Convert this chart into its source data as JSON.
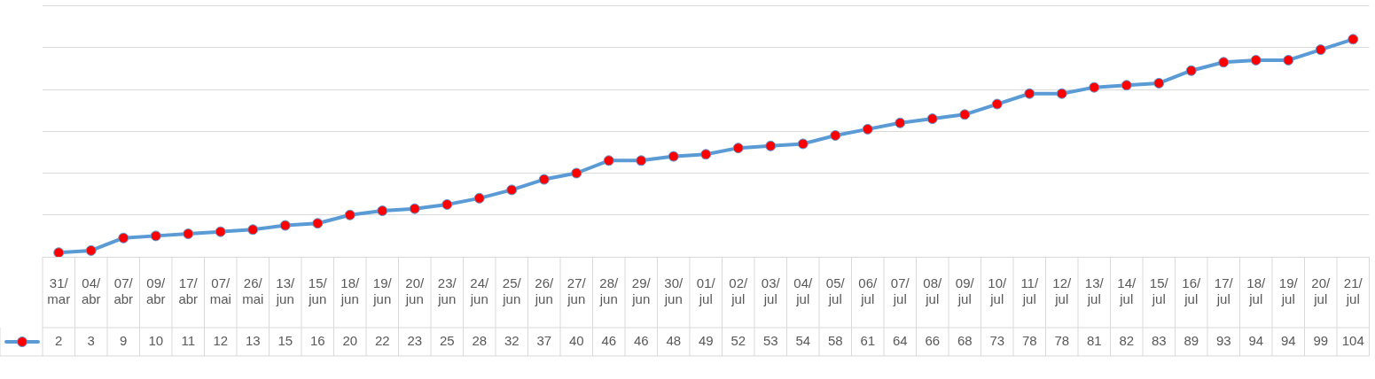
{
  "chart_data": {
    "type": "line",
    "categories": [
      "31/mar",
      "04/abr",
      "07/abr",
      "09/abr",
      "17/abr",
      "07/mai",
      "26/mai",
      "13/jun",
      "15/jun",
      "18/jun",
      "19/jun",
      "20/jun",
      "23/jun",
      "24/jun",
      "25/jun",
      "26/jun",
      "27/jun",
      "28/jun",
      "29/jun",
      "30/jun",
      "01/jul",
      "02/jul",
      "03/jul",
      "04/jul",
      "05/jul",
      "06/jul",
      "07/jul",
      "08/jul",
      "09/jul",
      "10/jul",
      "11/jul",
      "12/jul",
      "13/jul",
      "14/jul",
      "15/jul",
      "16/jul",
      "17/jul",
      "18/jul",
      "19/jul",
      "20/jul",
      "21/jul"
    ],
    "series": [
      {
        "color": "#5b9bd5",
        "values": [
          2,
          3,
          9,
          10,
          11,
          12,
          13,
          15,
          16,
          20,
          22,
          23,
          25,
          28,
          32,
          37,
          40,
          46,
          46,
          48,
          49,
          52,
          53,
          54,
          58,
          61,
          64,
          66,
          68,
          73,
          78,
          78,
          81,
          82,
          83,
          89,
          93,
          94,
          94,
          99,
          104
        ]
      }
    ],
    "ylim": [
      0,
      120
    ],
    "yticks": [
      0,
      20,
      40,
      60,
      80,
      100,
      120
    ],
    "grid": "y",
    "tick_labels": "x",
    "data_labels": true,
    "marker": "circle",
    "line_style": "solid",
    "legend": false
  }
}
